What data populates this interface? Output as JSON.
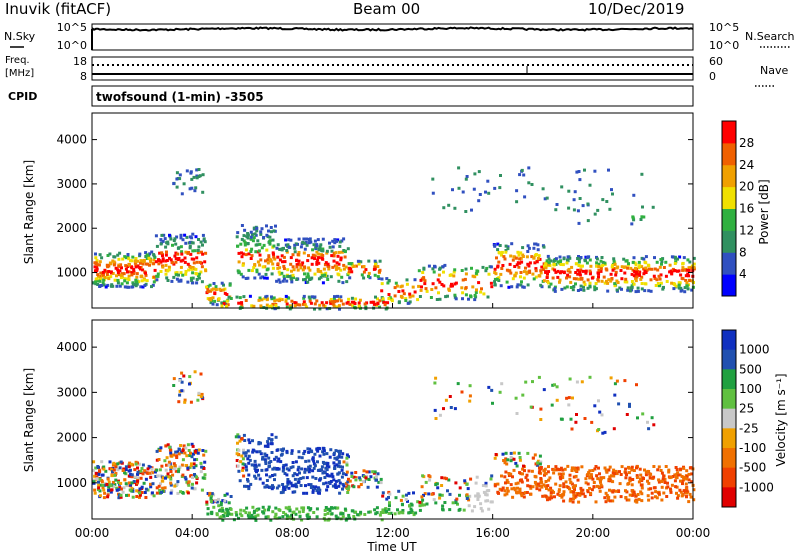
{
  "header": {
    "station": "Inuvik (fitACF)",
    "beam": "Beam 00",
    "date": "10/Dec/2019"
  },
  "noise_panel": {
    "left_label": "N.Sky",
    "right_label": "N.Search",
    "left_ticks": [
      "10^5",
      "10^0"
    ],
    "right_ticks": [
      "10^5",
      "10^0"
    ]
  },
  "freq_panel": {
    "left_label_1": "Freq.",
    "left_label_2": "[MHz]",
    "right_label": "Nave",
    "left_ticks": [
      "18",
      "8"
    ],
    "right_ticks": [
      "60",
      "0"
    ]
  },
  "cpid": {
    "label": "CPID",
    "value": "twofsound (1-min) -3505"
  },
  "colors": {
    "power_scale": [
      "#0000ff",
      "#3050c0",
      "#309060",
      "#30b040",
      "#f0e000",
      "#f0a000",
      "#f06000",
      "#ff0000"
    ],
    "velocity_scale": [
      "#1030c0",
      "#2050b0",
      "#20a040",
      "#60c040",
      "#c8c8c8",
      "#f0a000",
      "#f07000",
      "#f04000",
      "#e00000"
    ]
  },
  "chart_data": [
    {
      "type": "heatmap",
      "name": "power",
      "ylabel": "Slant Range [km]",
      "yticks": [
        "1000",
        "2000",
        "3000",
        "4000"
      ],
      "ylim": [
        200,
        4600
      ],
      "colorbar_label": "Power [dB]",
      "colorbar_ticks": [
        "4",
        "8",
        "12",
        "16",
        "20",
        "24",
        "28"
      ],
      "colorbar_range": [
        0,
        32
      ]
    },
    {
      "type": "heatmap",
      "name": "velocity",
      "ylabel": "Slant Range [km]",
      "yticks": [
        "1000",
        "2000",
        "3000",
        "4000"
      ],
      "ylim": [
        200,
        4600
      ],
      "colorbar_label": "Velocity [m s⁻¹]",
      "colorbar_ticks": [
        "1000",
        "500",
        "100",
        "25",
        "-25",
        "-100",
        "-500",
        "-1000"
      ]
    }
  ],
  "xaxis": {
    "ticks": [
      "00:00",
      "04:00",
      "08:00",
      "12:00",
      "16:00",
      "20:00",
      "00:00"
    ],
    "label": "Time UT"
  }
}
